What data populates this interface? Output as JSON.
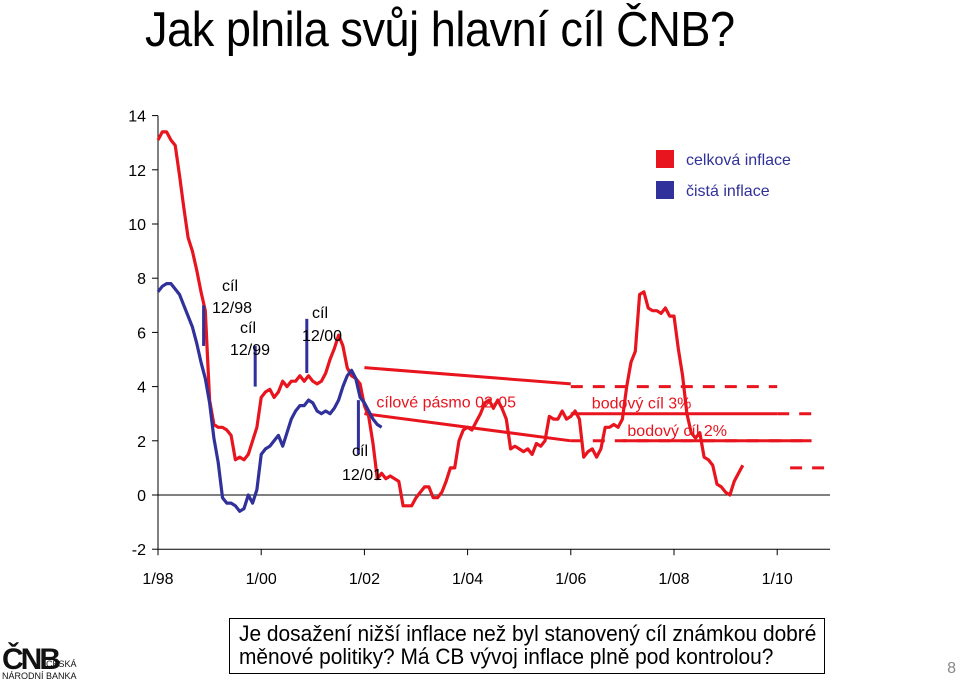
{
  "slide": {
    "title": "Jak plnila svůj hlavní cíl ČNB?",
    "question_line1": "Je dosažení nižší inflace než byl stanovený cíl známkou dobré",
    "question_line2": "měnové politiky? Má CB vývoj inflace plně pod kontrolou?",
    "page_number": "8",
    "logo": {
      "mark": "ČNB",
      "line1": "ČESKÁ",
      "line2": "NÁRODNÍ BANKA"
    }
  },
  "chart_data": {
    "type": "line",
    "title": "",
    "xlabel": "",
    "ylabel": "",
    "x_unit": "months since 1/98",
    "xlim": [
      0,
      148
    ],
    "ylim": [
      -2,
      14
    ],
    "y_ticks": [
      -2,
      0,
      2,
      4,
      6,
      8,
      10,
      12,
      14
    ],
    "x_ticks": [
      {
        "x": 0,
        "label": "1/98"
      },
      {
        "x": 24,
        "label": "1/00"
      },
      {
        "x": 48,
        "label": "1/02"
      },
      {
        "x": 72,
        "label": "1/04"
      },
      {
        "x": 96,
        "label": "1/06"
      },
      {
        "x": 120,
        "label": "1/08"
      },
      {
        "x": 144,
        "label": "1/10"
      }
    ],
    "legend_position": "top-right",
    "series": [
      {
        "name": "celková inflace",
        "color": "#e8141e",
        "points": [
          [
            0,
            13.1
          ],
          [
            1,
            13.4
          ],
          [
            2,
            13.4
          ],
          [
            3,
            13.1
          ],
          [
            4,
            12.9
          ],
          [
            5,
            11.8
          ],
          [
            6,
            10.6
          ],
          [
            7,
            9.5
          ],
          [
            8,
            9.0
          ],
          [
            9,
            8.3
          ],
          [
            10,
            7.5
          ],
          [
            11,
            6.8
          ],
          [
            12,
            3.5
          ],
          [
            13,
            2.6
          ],
          [
            14,
            2.5
          ],
          [
            15,
            2.5
          ],
          [
            16,
            2.4
          ],
          [
            17,
            2.2
          ],
          [
            18,
            1.3
          ],
          [
            19,
            1.4
          ],
          [
            20,
            1.3
          ],
          [
            21,
            1.5
          ],
          [
            22,
            2.0
          ],
          [
            23,
            2.5
          ],
          [
            24,
            3.6
          ],
          [
            25,
            3.8
          ],
          [
            26,
            3.9
          ],
          [
            27,
            3.6
          ],
          [
            28,
            3.8
          ],
          [
            29,
            4.2
          ],
          [
            30,
            4.0
          ],
          [
            31,
            4.2
          ],
          [
            32,
            4.2
          ],
          [
            33,
            4.4
          ],
          [
            34,
            4.2
          ],
          [
            35,
            4.4
          ],
          [
            36,
            4.2
          ],
          [
            37,
            4.1
          ],
          [
            38,
            4.2
          ],
          [
            39,
            4.5
          ],
          [
            40,
            5.0
          ],
          [
            41,
            5.4
          ],
          [
            42,
            5.9
          ],
          [
            43,
            5.5
          ],
          [
            44,
            4.7
          ],
          [
            45,
            4.4
          ],
          [
            46,
            4.3
          ],
          [
            47,
            4.1
          ],
          [
            48,
            3.3
          ],
          [
            49,
            2.9
          ],
          [
            50,
            1.9
          ],
          [
            51,
            0.6
          ],
          [
            52,
            0.8
          ],
          [
            53,
            0.6
          ],
          [
            54,
            0.7
          ],
          [
            55,
            0.6
          ],
          [
            56,
            0.5
          ],
          [
            57,
            -0.4
          ],
          [
            58,
            -0.4
          ],
          [
            59,
            -0.4
          ],
          [
            60,
            -0.1
          ],
          [
            61,
            0.1
          ],
          [
            62,
            0.3
          ],
          [
            63,
            0.3
          ],
          [
            64,
            -0.1
          ],
          [
            65,
            -0.1
          ],
          [
            66,
            0.1
          ],
          [
            67,
            0.5
          ],
          [
            68,
            1.0
          ],
          [
            69,
            1.0
          ],
          [
            70,
            2.0
          ],
          [
            71,
            2.4
          ],
          [
            72,
            2.5
          ],
          [
            73,
            2.4
          ],
          [
            74,
            2.7
          ],
          [
            75,
            3.0
          ],
          [
            76,
            3.4
          ],
          [
            77,
            3.5
          ],
          [
            78,
            3.2
          ],
          [
            79,
            3.5
          ],
          [
            80,
            3.2
          ],
          [
            81,
            2.8
          ],
          [
            82,
            1.7
          ],
          [
            83,
            1.8
          ],
          [
            84,
            1.7
          ],
          [
            85,
            1.6
          ],
          [
            86,
            1.7
          ],
          [
            87,
            1.5
          ],
          [
            88,
            1.9
          ],
          [
            89,
            1.8
          ],
          [
            90,
            2.0
          ],
          [
            91,
            2.9
          ],
          [
            92,
            2.8
          ],
          [
            93,
            2.8
          ],
          [
            94,
            3.1
          ],
          [
            95,
            2.8
          ],
          [
            96,
            2.9
          ],
          [
            97,
            3.1
          ],
          [
            98,
            2.8
          ],
          [
            99,
            1.4
          ],
          [
            100,
            1.6
          ],
          [
            101,
            1.7
          ],
          [
            102,
            1.4
          ],
          [
            103,
            1.7
          ],
          [
            104,
            2.5
          ],
          [
            105,
            2.5
          ],
          [
            106,
            2.6
          ],
          [
            107,
            2.5
          ],
          [
            108,
            2.8
          ],
          [
            109,
            4.0
          ],
          [
            110,
            4.9
          ],
          [
            111,
            5.3
          ],
          [
            112,
            7.4
          ],
          [
            113,
            7.5
          ],
          [
            114,
            6.9
          ],
          [
            115,
            6.8
          ],
          [
            116,
            6.8
          ],
          [
            117,
            6.7
          ],
          [
            118,
            6.9
          ],
          [
            119,
            6.6
          ],
          [
            120,
            6.6
          ],
          [
            121,
            5.4
          ],
          [
            122,
            4.4
          ],
          [
            123,
            3.0
          ],
          [
            124,
            2.3
          ],
          [
            125,
            2.1
          ],
          [
            126,
            2.3
          ],
          [
            127,
            1.4
          ],
          [
            128,
            1.3
          ],
          [
            129,
            1.1
          ],
          [
            130,
            0.4
          ],
          [
            131,
            0.3
          ],
          [
            132,
            0.1
          ],
          [
            133,
            0.0
          ],
          [
            134,
            0.5
          ],
          [
            135,
            0.8
          ],
          [
            136,
            1.1
          ]
        ]
      },
      {
        "name": "čistá inflace",
        "color": "#30319a",
        "points": [
          [
            0,
            7.5
          ],
          [
            1,
            7.7
          ],
          [
            2,
            7.8
          ],
          [
            3,
            7.8
          ],
          [
            4,
            7.6
          ],
          [
            5,
            7.4
          ],
          [
            6,
            7.0
          ],
          [
            7,
            6.6
          ],
          [
            8,
            6.2
          ],
          [
            9,
            5.6
          ],
          [
            10,
            4.9
          ],
          [
            11,
            4.3
          ],
          [
            12,
            3.4
          ],
          [
            13,
            2.1
          ],
          [
            14,
            1.2
          ],
          [
            15,
            -0.1
          ],
          [
            16,
            -0.3
          ],
          [
            17,
            -0.3
          ],
          [
            18,
            -0.4
          ],
          [
            19,
            -0.6
          ],
          [
            20,
            -0.5
          ],
          [
            21,
            0.0
          ],
          [
            22,
            -0.3
          ],
          [
            23,
            0.2
          ],
          [
            24,
            1.5
          ],
          [
            25,
            1.7
          ],
          [
            26,
            1.8
          ],
          [
            27,
            2.0
          ],
          [
            28,
            2.2
          ],
          [
            29,
            1.8
          ],
          [
            30,
            2.3
          ],
          [
            31,
            2.8
          ],
          [
            32,
            3.1
          ],
          [
            33,
            3.3
          ],
          [
            34,
            3.3
          ],
          [
            35,
            3.5
          ],
          [
            36,
            3.4
          ],
          [
            37,
            3.1
          ],
          [
            38,
            3.0
          ],
          [
            39,
            3.1
          ],
          [
            40,
            3.0
          ],
          [
            41,
            3.2
          ],
          [
            42,
            3.5
          ],
          [
            43,
            4.0
          ],
          [
            44,
            4.4
          ],
          [
            45,
            4.6
          ],
          [
            46,
            4.3
          ],
          [
            47,
            3.6
          ],
          [
            48,
            3.4
          ],
          [
            49,
            3.1
          ],
          [
            50,
            2.8
          ],
          [
            51,
            2.6
          ],
          [
            52,
            2.5
          ]
        ]
      }
    ],
    "target_band": {
      "label": "cílové pásmo 02-05",
      "x": [
        48,
        96
      ],
      "upper": [
        4.7,
        4.1
      ],
      "lower": [
        3.0,
        2.0
      ]
    },
    "point_targets": [
      {
        "label": "bodový cíl 3%",
        "value": 3,
        "x": [
          96,
          144
        ],
        "dashed_x": [
          96,
          144
        ]
      },
      {
        "label": "bodový cíl 2%",
        "value": 2,
        "x": [
          108,
          152
        ],
        "dashed_x": [
          96,
          150
        ]
      }
    ],
    "point_target_dashes": [
      {
        "value": 4.0,
        "x": [
          96,
          144
        ]
      },
      {
        "value": 3.0,
        "x": [
          144,
          152
        ]
      },
      {
        "value": 2.0,
        "x": [
          96,
          150
        ]
      },
      {
        "value": 1.0,
        "x": [
          147,
          156
        ]
      }
    ],
    "annotations": [
      {
        "line1": "cíl",
        "line2": "12/98",
        "x": 12,
        "marker": [
          5.5,
          7.0
        ]
      },
      {
        "line1": "cíl",
        "line2": "12/99",
        "x": 24,
        "marker": [
          4.0,
          5.5
        ]
      },
      {
        "line1": "cíl",
        "line2": "12/00",
        "x": 36,
        "marker": [
          4.5,
          6.5
        ]
      },
      {
        "line1": "cíl",
        "line2": "12/01",
        "x": 48,
        "marker": [
          1.5,
          3.5
        ]
      }
    ]
  }
}
